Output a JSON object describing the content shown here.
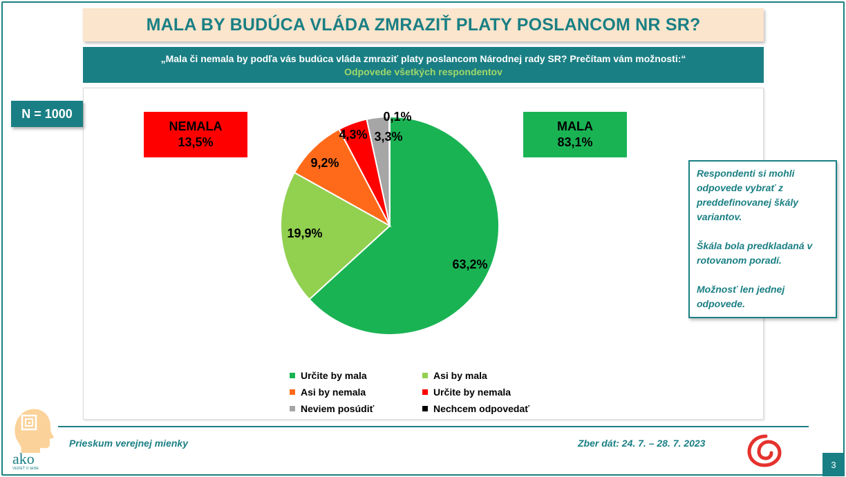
{
  "title": "MALA BY BUDÚCA VLÁDA ZMRAZIŤ PLATY POSLANCOM NR SR?",
  "question": "„Mala či nemala by podľa vás budúca vláda zmraziť platy poslancom Národnej rady SR? Prečítam vám možnosti:“",
  "respondents": "Odpovede všetkých respondentov",
  "sample": "N = 1000",
  "groups": {
    "nemala": {
      "label": "NEMALA",
      "value": "13,5%",
      "color": "#ff0000"
    },
    "mala": {
      "label": "MALA",
      "value": "83,1%",
      "color": "#1ab354"
    }
  },
  "chart_data": {
    "type": "pie",
    "start_angle_deg": 0,
    "direction": "clockwise",
    "slices": [
      {
        "name": "Určite by mala",
        "value": 63.2,
        "label": "63,2%",
        "color": "#1ab354"
      },
      {
        "name": "Asi by mala",
        "value": 19.9,
        "label": "19,9%",
        "color": "#92d050"
      },
      {
        "name": "Asi by nemala",
        "value": 9.2,
        "label": "9,2%",
        "color": "#ff6a1a"
      },
      {
        "name": "Určite by nemala",
        "value": 4.3,
        "label": "4,3%",
        "color": "#ff0000"
      },
      {
        "name": "Neviem posúdiť",
        "value": 3.3,
        "label": "3,3%",
        "color": "#a6a6a6"
      },
      {
        "name": "Nechcem odpovedať",
        "value": 0.1,
        "label": "0,1%",
        "color": "#000000"
      }
    ],
    "legend_position": "bottom"
  },
  "note": [
    "Respondenti si mohli odpovede vybrať z preddefinovanej škály variantov.",
    "Škála bola predkladaná v rotovanom poradí.",
    "Možnosť len jednej odpovede."
  ],
  "footer": {
    "left": "Prieskum verejnej mienky",
    "right": "Zber dát: 24. 7. – 28. 7. 2023"
  },
  "logo": {
    "name": "ako",
    "tagline": "VEDIEŤ O SEBE"
  },
  "page_number": "3"
}
